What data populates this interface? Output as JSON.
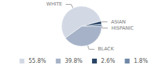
{
  "chart_data": {
    "type": "pie",
    "categories": [
      "WHITE",
      "BLACK",
      "ASIAN",
      "HISPANIC"
    ],
    "values": [
      55.8,
      39.8,
      2.6,
      1.8
    ],
    "value_labels": [
      "55.8%",
      "39.8%",
      "2.6%",
      "1.8%"
    ],
    "colors": [
      "#d3d9e4",
      "#a6b2c7",
      "#2a4565",
      "#7088a8"
    ],
    "legend": "bottom"
  }
}
